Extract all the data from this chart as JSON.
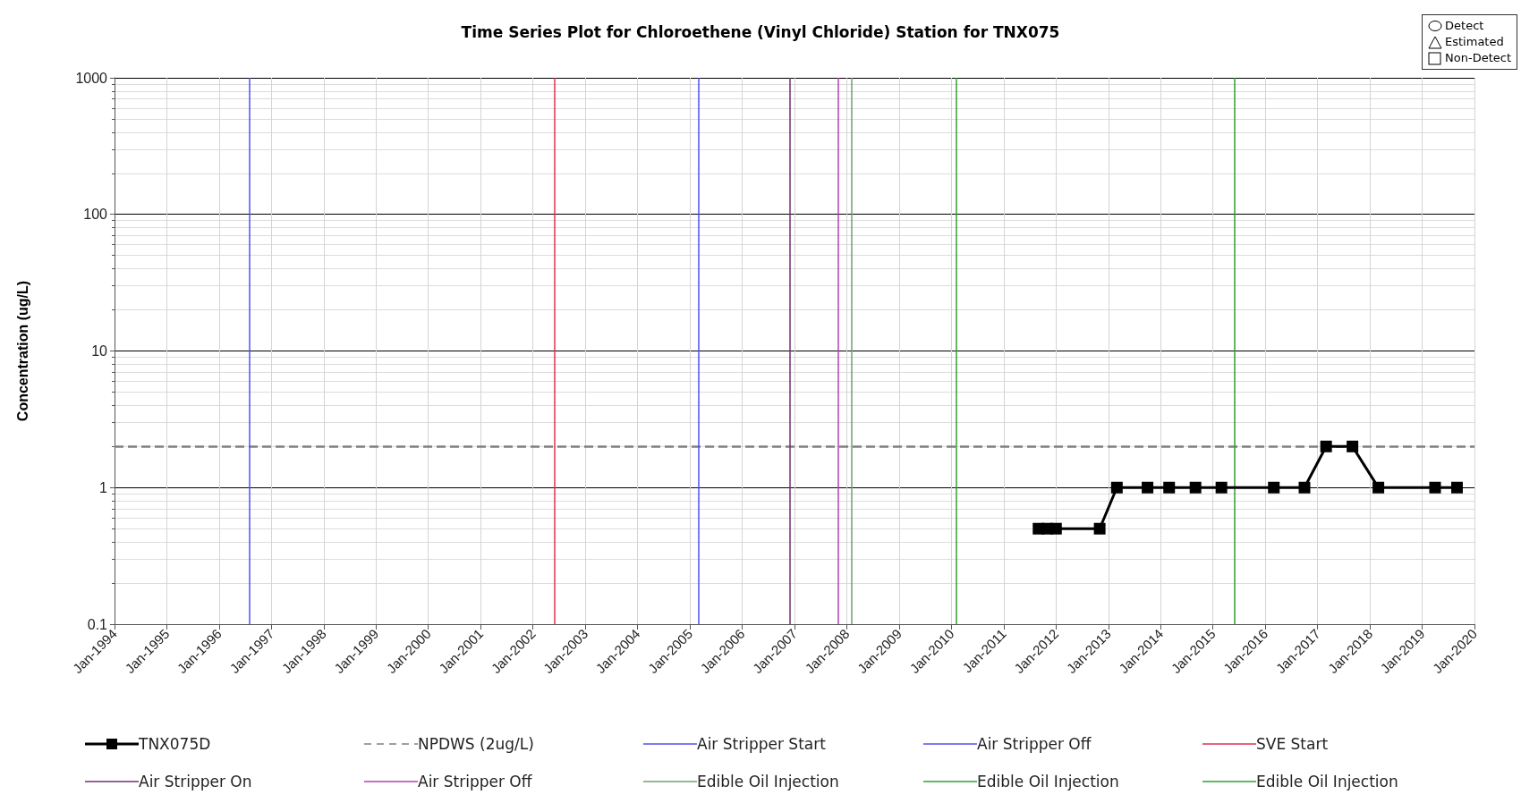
{
  "chart_data": {
    "type": "line",
    "title": "Time Series Plot for Chloroethene (Vinyl Chloride) Station for TNX075",
    "ylabel": "Concentration (ug/L)",
    "x": [
      "2011-09",
      "2011-11",
      "2012-01",
      "2012-11",
      "2013-03",
      "2013-10",
      "2014-03",
      "2014-09",
      "2015-03",
      "2016-03",
      "2016-10",
      "2017-03",
      "2017-09",
      "2018-03",
      "2019-04",
      "2019-09"
    ],
    "series": [
      {
        "name": "TNX075D",
        "color": "#000000",
        "values": [
          0.5,
          0.5,
          0.5,
          0.5,
          1,
          1,
          1,
          1,
          1,
          1,
          1,
          2,
          2,
          1,
          1,
          1
        ]
      }
    ],
    "marker": "square",
    "line_style": "solid",
    "log": "y",
    "grid": true,
    "legend": "bottom",
    "xlim": [
      "1994-01",
      "2020-01"
    ],
    "xticks": [
      {
        "value": "1994-01",
        "label": "Jan-1994"
      },
      {
        "value": "1995-01",
        "label": "Jan-1995"
      },
      {
        "value": "1996-01",
        "label": "Jan-1996"
      },
      {
        "value": "1997-01",
        "label": "Jan-1997"
      },
      {
        "value": "1998-01",
        "label": "Jan-1998"
      },
      {
        "value": "1999-01",
        "label": "Jan-1999"
      },
      {
        "value": "2000-01",
        "label": "Jan-2000"
      },
      {
        "value": "2001-01",
        "label": "Jan-2001"
      },
      {
        "value": "2002-01",
        "label": "Jan-2002"
      },
      {
        "value": "2003-01",
        "label": "Jan-2003"
      },
      {
        "value": "2004-01",
        "label": "Jan-2004"
      },
      {
        "value": "2005-01",
        "label": "Jan-2005"
      },
      {
        "value": "2006-01",
        "label": "Jan-2006"
      },
      {
        "value": "2007-01",
        "label": "Jan-2007"
      },
      {
        "value": "2008-01",
        "label": "Jan-2008"
      },
      {
        "value": "2009-01",
        "label": "Jan-2009"
      },
      {
        "value": "2010-01",
        "label": "Jan-2010"
      },
      {
        "value": "2011-01",
        "label": "Jan-2011"
      },
      {
        "value": "2012-01",
        "label": "Jan-2012"
      },
      {
        "value": "2013-01",
        "label": "Jan-2013"
      },
      {
        "value": "2014-01",
        "label": "Jan-2014"
      },
      {
        "value": "2015-01",
        "label": "Jan-2015"
      },
      {
        "value": "2016-01",
        "label": "Jan-2016"
      },
      {
        "value": "2017-01",
        "label": "Jan-2017"
      },
      {
        "value": "2018-01",
        "label": "Jan-2018"
      },
      {
        "value": "2019-01",
        "label": "Jan-2019"
      },
      {
        "value": "2020-01",
        "label": "Jan-2020"
      }
    ],
    "ylim": [
      0.1,
      1000
    ],
    "yticks": [
      0.1,
      1,
      10,
      100,
      1000
    ],
    "ref_lines": [
      {
        "axis": "y",
        "value": 2,
        "label": "NPDWS (2ug/L)",
        "color": "#808080",
        "line_style": "dashed"
      },
      {
        "axis": "x",
        "value": "1996-08",
        "label": "Air Stripper Start",
        "color": "#5050f0"
      },
      {
        "axis": "x",
        "value": "2005-03",
        "label": "Air Stripper Off",
        "color": "#5050f0"
      },
      {
        "axis": "x",
        "value": "2002-06",
        "label": "SVE Start",
        "color": "#e03050"
      },
      {
        "axis": "x",
        "value": "2006-12",
        "label": "Air Stripper On",
        "color": "#703070"
      },
      {
        "axis": "x",
        "value": "2007-11",
        "label": "Air Stripper Off",
        "color": "#b040b0"
      },
      {
        "axis": "x",
        "value": "2008-02",
        "label": "Edible Oil Injection",
        "color": "#70a070"
      },
      {
        "axis": "x",
        "value": "2010-02",
        "label": "Edible Oil Injection",
        "color": "#30a030"
      },
      {
        "axis": "x",
        "value": "2015-06",
        "label": "Edible Oil Injection",
        "color": "#30a030"
      }
    ],
    "annotations": [
      "Detect",
      "Estimated",
      "Non-Detect"
    ]
  }
}
